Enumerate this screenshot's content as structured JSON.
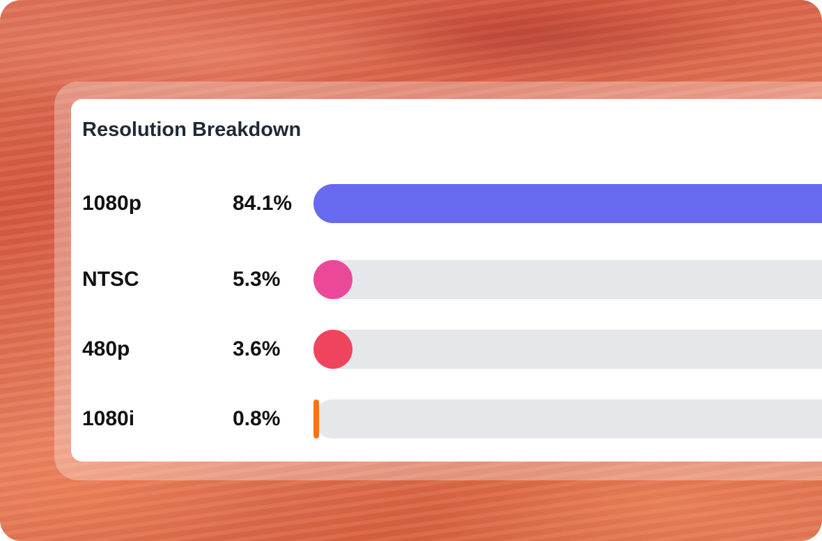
{
  "card": {
    "title": "Resolution Breakdown"
  },
  "rows": [
    {
      "label": "1080p",
      "value": "84.1%",
      "fraction": 0.841,
      "color": "#6769f0"
    },
    {
      "label": "NTSC",
      "value": "5.3%",
      "fraction": 0.053,
      "color": "#ec4899"
    },
    {
      "label": "480p",
      "value": "3.6%",
      "fraction": 0.036,
      "color": "#f0435e"
    },
    {
      "label": "1080i",
      "value": "0.8%",
      "fraction": 0.008,
      "color": "#f97316"
    }
  ]
}
